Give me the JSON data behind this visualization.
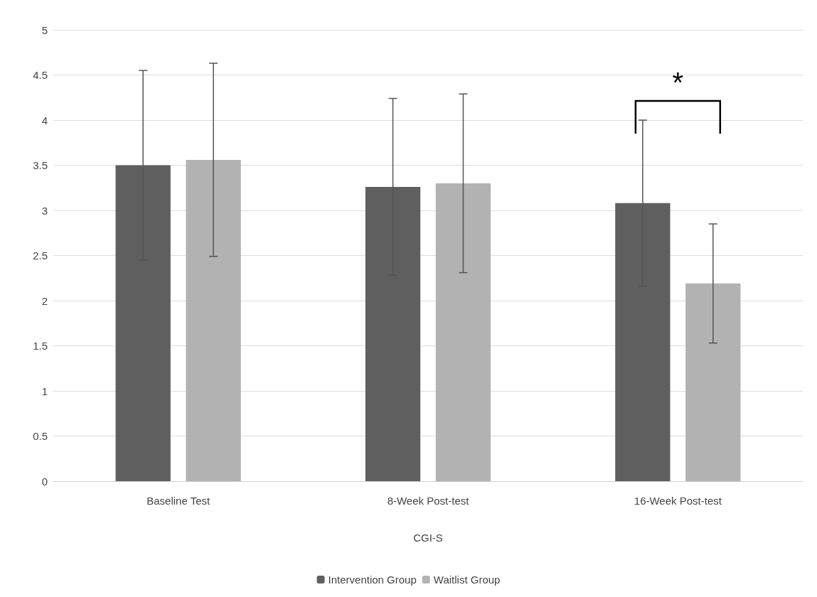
{
  "chart_data": {
    "type": "bar",
    "xlabel": "CGI-S",
    "categories": [
      "Baseline Test",
      "8-Week Post-test",
      "16-Week Post-test"
    ],
    "series": [
      {
        "name": "Intervention Group",
        "color": "#5f5f5f",
        "values": [
          3.5,
          3.26,
          3.08
        ],
        "errors": [
          1.05,
          0.98,
          0.92
        ]
      },
      {
        "name": "Waitlist Group",
        "color": "#b2b2b2",
        "values": [
          3.56,
          3.3,
          2.19
        ],
        "errors": [
          1.07,
          0.99,
          0.66
        ]
      }
    ],
    "ylim": [
      0,
      5
    ],
    "yticks": [
      0,
      0.5,
      1,
      1.5,
      2,
      2.5,
      3,
      3.5,
      4,
      4.5,
      5
    ],
    "grid": "y",
    "legend": "bottom",
    "annotations": [
      "*"
    ]
  }
}
